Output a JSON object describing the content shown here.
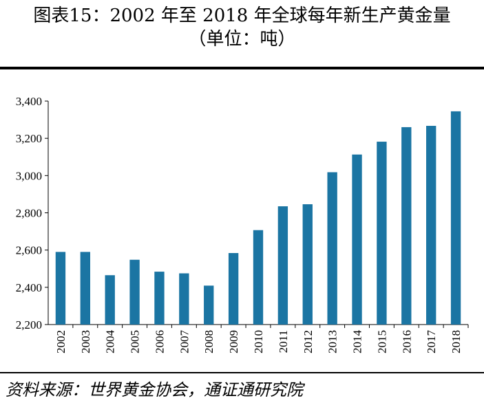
{
  "header": {
    "title": "图表15：2002 年至 2018 年全球每年新生产黄金量",
    "subtitle": "（单位：吨）"
  },
  "source": "资料来源：世界黄金协会，通证通研究院",
  "colors": {
    "bar": "#1b75a3",
    "axis": "#000000"
  },
  "chart_data": {
    "type": "bar",
    "title": "图表15：2002 年至 2018 年全球每年新生产黄金量",
    "xlabel": "",
    "ylabel": "",
    "categories": [
      "2002",
      "2003",
      "2004",
      "2005",
      "2006",
      "2007",
      "2008",
      "2009",
      "2010",
      "2011",
      "2012",
      "2013",
      "2014",
      "2015",
      "2016",
      "2017",
      "2018"
    ],
    "values": [
      2590,
      2590,
      2465,
      2548,
      2484,
      2475,
      2409,
      2584,
      2707,
      2835,
      2846,
      3018,
      3113,
      3182,
      3260,
      3267,
      3345
    ],
    "ylim": [
      2200,
      3400
    ],
    "yticks": [
      "2,200",
      "2,400",
      "2,600",
      "2,800",
      "3,000",
      "3,200",
      "3,400"
    ],
    "ytick_values": [
      2200,
      2400,
      2600,
      2800,
      3000,
      3200,
      3400
    ],
    "grid": false,
    "legend": "none"
  }
}
